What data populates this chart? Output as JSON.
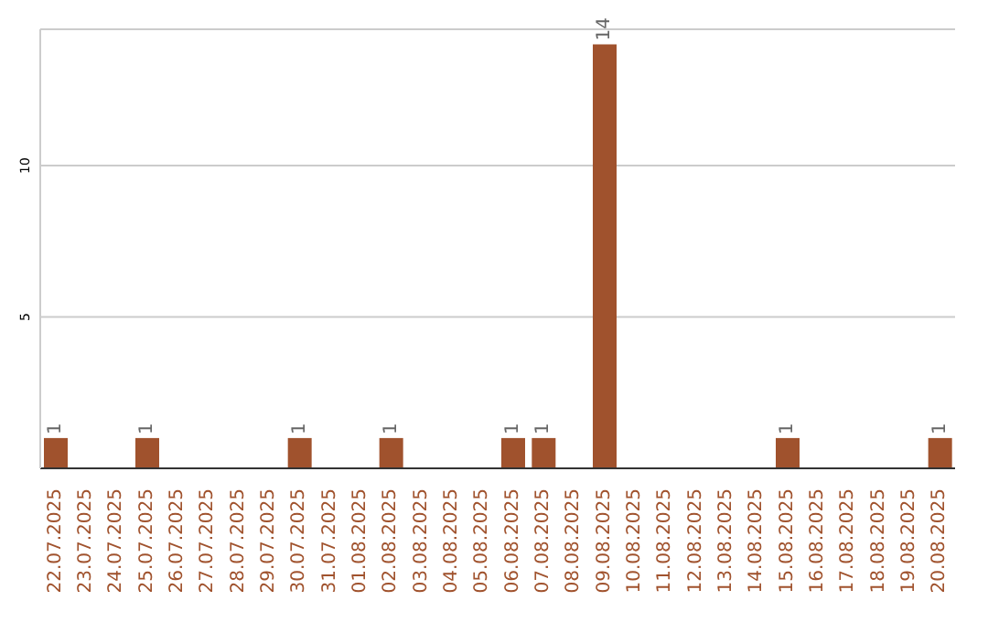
{
  "chart_data": {
    "type": "bar",
    "categories": [
      "22.07.2025",
      "23.07.2025",
      "24.07.2025",
      "25.07.2025",
      "26.07.2025",
      "27.07.2025",
      "28.07.2025",
      "29.07.2025",
      "30.07.2025",
      "31.07.2025",
      "01.08.2025",
      "02.08.2025",
      "03.08.2025",
      "04.08.2025",
      "05.08.2025",
      "06.08.2025",
      "07.08.2025",
      "08.08.2025",
      "09.08.2025",
      "10.08.2025",
      "11.08.2025",
      "12.08.2025",
      "13.08.2025",
      "14.08.2025",
      "15.08.2025",
      "16.08.2025",
      "17.08.2025",
      "18.08.2025",
      "19.08.2025",
      "20.08.2025"
    ],
    "values": [
      1,
      0,
      0,
      1,
      0,
      0,
      0,
      0,
      1,
      0,
      0,
      1,
      0,
      0,
      0,
      1,
      1,
      0,
      14,
      0,
      0,
      0,
      0,
      0,
      1,
      0,
      0,
      0,
      0,
      1
    ],
    "value_labels": [
      "1",
      null,
      null,
      "1",
      null,
      null,
      null,
      null,
      "1",
      null,
      null,
      "1",
      null,
      null,
      null,
      "1",
      "1",
      null,
      "14",
      null,
      null,
      null,
      null,
      null,
      "1",
      null,
      null,
      null,
      null,
      "1"
    ],
    "color": "#a0522d",
    "ylim": [
      0,
      14.5
    ],
    "yticks": [
      5,
      10
    ],
    "grid": "y"
  }
}
